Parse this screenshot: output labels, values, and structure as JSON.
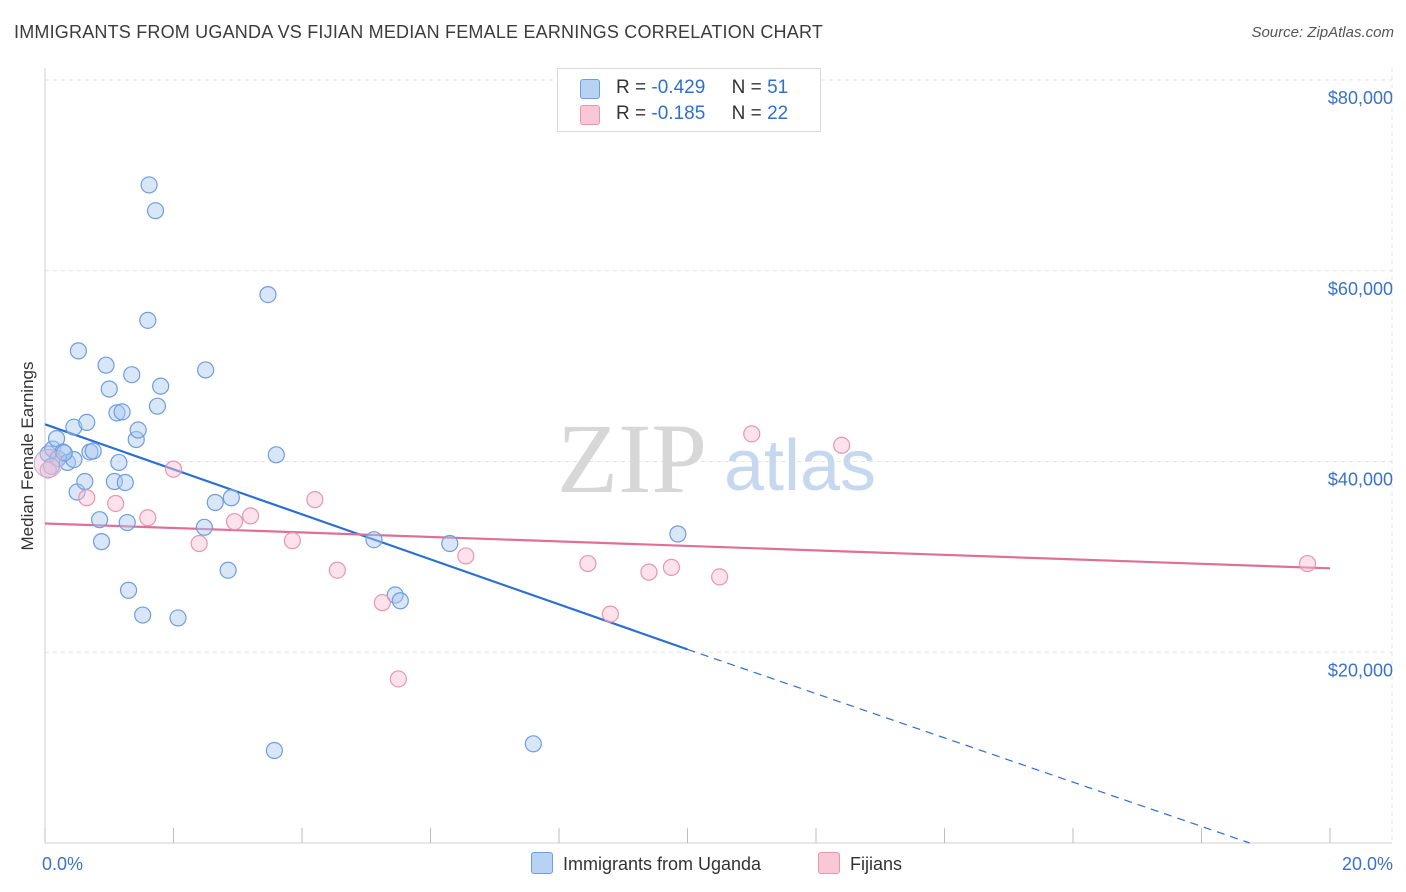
{
  "title": "IMMIGRANTS FROM UGANDA VS FIJIAN MEDIAN FEMALE EARNINGS CORRELATION CHART",
  "source": "Source: ZipAtlas.com",
  "watermark": {
    "zip": "ZIP",
    "atlas": "atlas"
  },
  "stats": [
    {
      "r_label": "R =",
      "r_value": "-0.429",
      "n_label": "N =",
      "n_value": "51",
      "color": "#6c9ee0"
    },
    {
      "r_label": "R =",
      "r_value": "-0.185",
      "n_label": "N =",
      "n_value": "22",
      "color": "#e995b0"
    }
  ],
  "legend": [
    {
      "label": "Immigrants from Uganda",
      "color": "#6c9ee0"
    },
    {
      "label": "Fijians",
      "color": "#e995b0"
    }
  ],
  "chart_data": {
    "type": "scatter",
    "title": "IMMIGRANTS FROM UGANDA VS FIJIAN MEDIAN FEMALE EARNINGS CORRELATION CHART",
    "xlabel": "",
    "ylabel": "Median Female Earnings",
    "xlim": [
      0,
      20
    ],
    "ylim": [
      0,
      80000
    ],
    "x_tick_labels": [
      "0.0%",
      "20.0%"
    ],
    "y_ticks": [
      20000,
      40000,
      60000,
      80000
    ],
    "y_tick_labels": [
      "$20,000",
      "$40,000",
      "$60,000",
      "$80,000"
    ],
    "grid": true,
    "series": [
      {
        "name": "Immigrants from Uganda",
        "color": "#6c9ee0",
        "points": [
          [
            0.05,
            40800
          ],
          [
            0.12,
            41300
          ],
          [
            0.18,
            42400
          ],
          [
            0.2,
            40300
          ],
          [
            0.28,
            41000
          ],
          [
            0.35,
            39900
          ],
          [
            0.45,
            40200
          ],
          [
            0.45,
            43600
          ],
          [
            0.5,
            36800
          ],
          [
            0.62,
            37900
          ],
          [
            0.65,
            44100
          ],
          [
            0.7,
            41000
          ],
          [
            0.75,
            41100
          ],
          [
            0.85,
            33900
          ],
          [
            0.88,
            31600
          ],
          [
            0.95,
            50100
          ],
          [
            0.52,
            51600
          ],
          [
            1.0,
            47600
          ],
          [
            1.08,
            37900
          ],
          [
            1.12,
            45100
          ],
          [
            1.15,
            39900
          ],
          [
            1.2,
            45200
          ],
          [
            1.28,
            33600
          ],
          [
            1.3,
            26500
          ],
          [
            1.35,
            49100
          ],
          [
            1.42,
            42300
          ],
          [
            1.45,
            43300
          ],
          [
            1.52,
            23900
          ],
          [
            1.6,
            54800
          ],
          [
            1.62,
            69000
          ],
          [
            1.72,
            66300
          ],
          [
            1.75,
            45800
          ],
          [
            1.8,
            47900
          ],
          [
            2.07,
            23600
          ],
          [
            2.5,
            49600
          ],
          [
            2.48,
            33100
          ],
          [
            2.65,
            35700
          ],
          [
            2.85,
            28600
          ],
          [
            2.9,
            36200
          ],
          [
            3.47,
            57500
          ],
          [
            3.57,
            9700
          ],
          [
            3.6,
            40700
          ],
          [
            5.12,
            31800
          ],
          [
            5.45,
            26000
          ],
          [
            5.53,
            25400
          ],
          [
            6.3,
            31400
          ],
          [
            7.6,
            10400
          ],
          [
            9.85,
            32400
          ],
          [
            0.1,
            39500
          ],
          [
            0.3,
            40900
          ],
          [
            1.25,
            37800
          ]
        ]
      },
      {
        "name": "Fijians",
        "color": "#e995b0",
        "points": [
          [
            0.05,
            39100
          ],
          [
            0.65,
            36200
          ],
          [
            1.1,
            35600
          ],
          [
            1.6,
            34100
          ],
          [
            2.0,
            39200
          ],
          [
            2.4,
            31400
          ],
          [
            2.95,
            33700
          ],
          [
            3.2,
            34300
          ],
          [
            3.85,
            31700
          ],
          [
            4.2,
            36000
          ],
          [
            4.55,
            28600
          ],
          [
            5.25,
            25200
          ],
          [
            5.5,
            17200
          ],
          [
            6.55,
            30100
          ],
          [
            8.45,
            29300
          ],
          [
            8.8,
            24000
          ],
          [
            9.4,
            28400
          ],
          [
            9.75,
            28900
          ],
          [
            10.5,
            27900
          ],
          [
            11.0,
            42900
          ],
          [
            12.4,
            41700
          ],
          [
            19.65,
            29300
          ]
        ]
      }
    ],
    "trend_lines": [
      {
        "series": "Immigrants from Uganda",
        "x": [
          0,
          10
        ],
        "y": [
          43900,
          20300
        ],
        "dashed_extension_to": [
          18.75,
          0
        ]
      },
      {
        "series": "Fijians",
        "x": [
          0,
          20
        ],
        "y": [
          33500,
          28800
        ]
      }
    ]
  }
}
